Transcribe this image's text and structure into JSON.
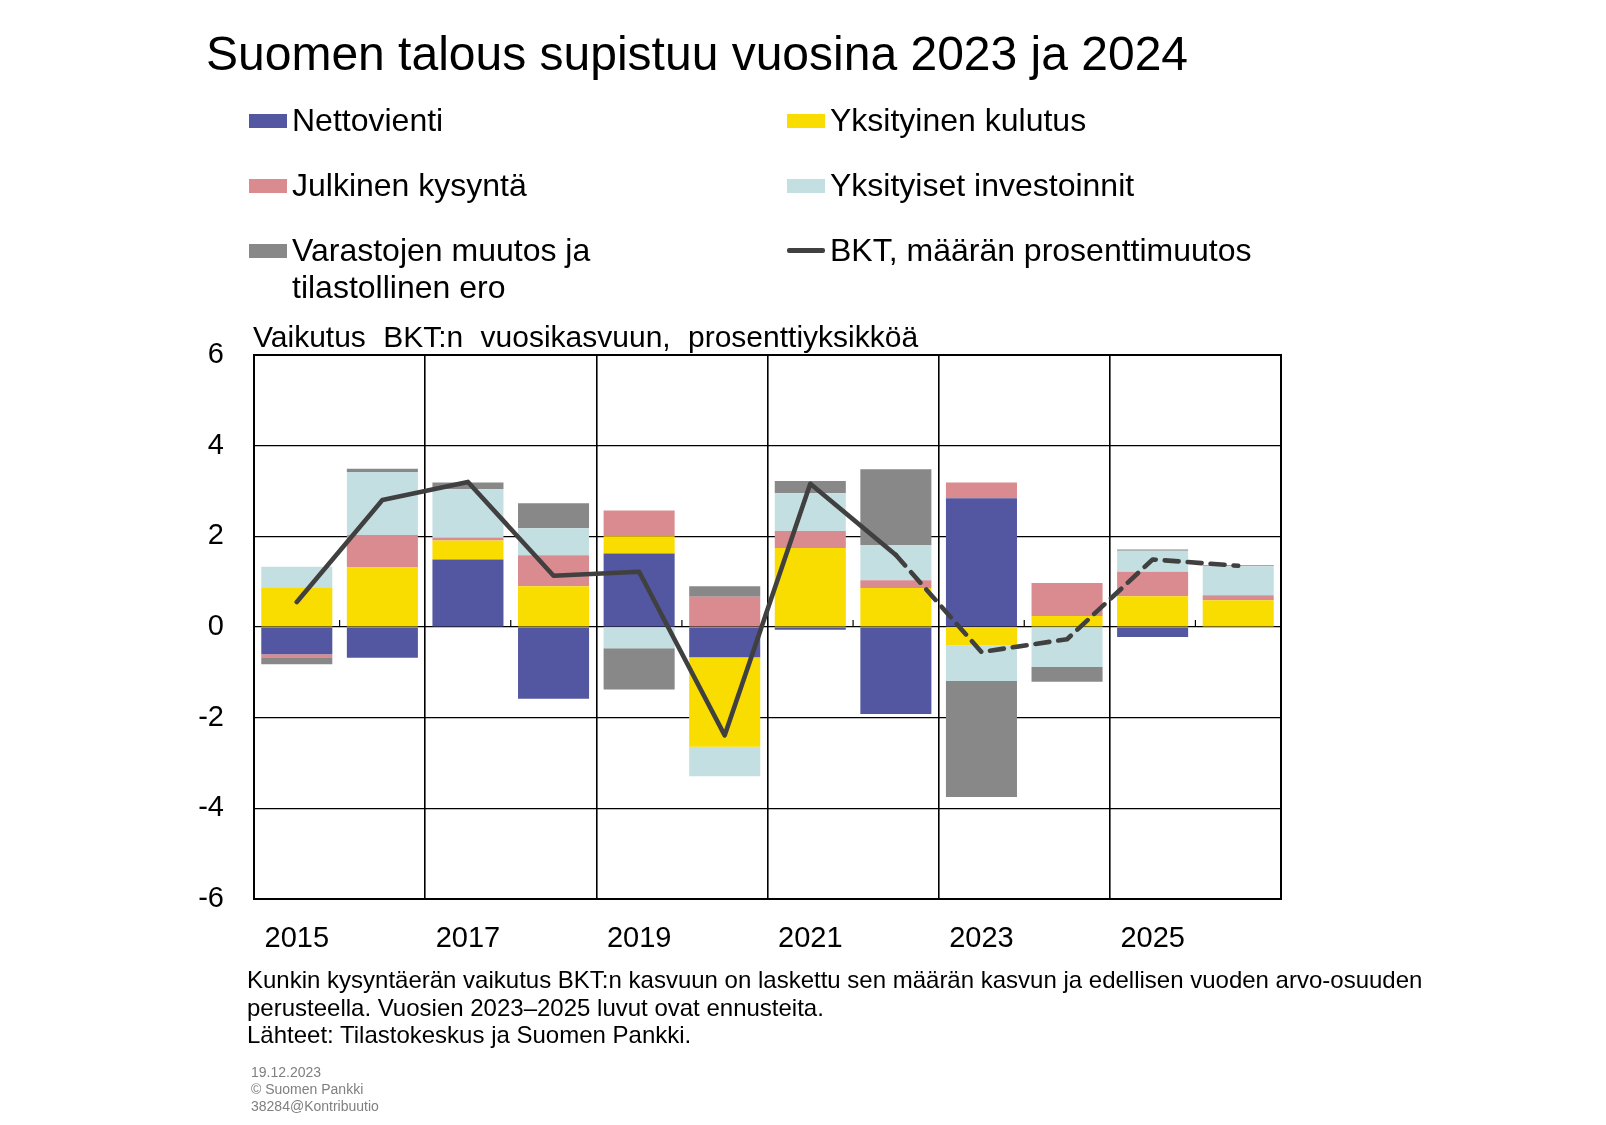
{
  "chart_data": {
    "type": "bar",
    "title": "Suomen talous supistuu vuosina 2023 ja 2024",
    "ylabel": "Vaikutus BKT:n vuosikasvuun, prosenttiyksikköä",
    "categories": [
      "2015",
      null,
      "2017",
      null,
      "2019",
      null,
      "2021",
      null,
      "2023",
      null,
      "2025",
      null
    ],
    "stacked": true,
    "series": [
      {
        "name": "Nettovienti",
        "color": "#5356a0",
        "values": [
          -0.6,
          -0.68,
          1.49,
          -1.58,
          1.62,
          -0.67,
          -0.06,
          -1.92,
          2.84,
          0,
          -0.22,
          0
        ]
      },
      {
        "name": "Yksityinen kulutus",
        "color": "#f9dc00",
        "values": [
          0.86,
          1.31,
          0.42,
          0.9,
          0.38,
          -1.97,
          1.74,
          0.86,
          -0.41,
          0.24,
          0.68,
          0.59
        ]
      },
      {
        "name": "Julkinen kysyntä",
        "color": "#d98b8f",
        "values": [
          -0.07,
          0.72,
          0.06,
          0.68,
          0.57,
          0.67,
          0.38,
          0.17,
          0.35,
          0.73,
          0.54,
          0.11
        ]
      },
      {
        "name": "Yksityiset investoinnit",
        "color": "#c4dfe2",
        "values": [
          0.47,
          1.39,
          1.07,
          0.6,
          -0.47,
          -0.65,
          0.83,
          0.78,
          -0.78,
          -0.88,
          0.46,
          0.64
        ]
      },
      {
        "name": "Varastojen muutos ja tilastollinen ero",
        "color": "#888888",
        "values": [
          -0.15,
          0.07,
          0.15,
          0.55,
          -0.91,
          0.23,
          0.27,
          1.67,
          -2.56,
          -0.33,
          0.03,
          0.02
        ]
      },
      {
        "name": "BKT, määrän prosenttimuutos",
        "type": "line",
        "line_style": "solid",
        "color": "#404040",
        "values": [
          0.55,
          2.8,
          3.2,
          1.13,
          1.22,
          -2.39,
          3.16,
          1.59,
          null,
          null,
          null,
          null
        ]
      },
      {
        "type": "line",
        "line_style": "dashed",
        "color": "#404040",
        "values": [
          null,
          null,
          null,
          null,
          null,
          null,
          null,
          1.59,
          -0.55,
          -0.27,
          1.49,
          1.35
        ]
      }
    ],
    "ylim": [
      -6,
      6
    ],
    "yticks": [
      -6,
      -4,
      -2,
      0,
      2,
      4,
      6
    ],
    "grid": true,
    "legend": "top",
    "annotations": [
      "Kunkin kysyntäerän vaikutus BKT:n kasvuun on laskettu sen määrän kasvun ja edellisen vuoden arvo-osuuden perusteella. Vuosien 2023–2025 luvut ovat ennusteita.",
      "Lähteet: Tilastokeskus ja Suomen Pankki.",
      "19.12.2023",
      "© Suomen Pankki",
      "38284@Kontribuutio"
    ]
  }
}
